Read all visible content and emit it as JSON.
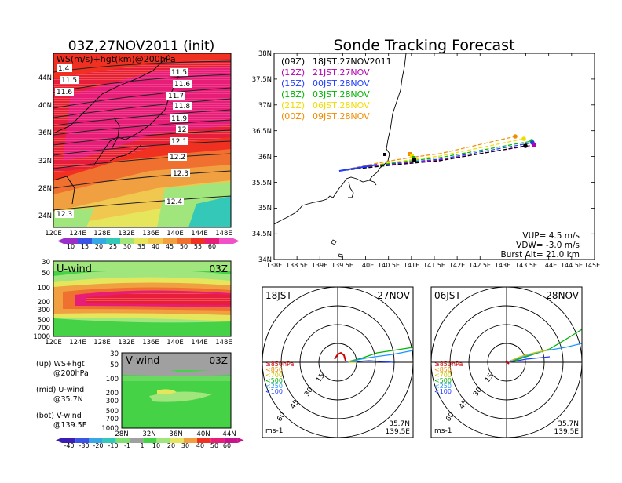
{
  "left_title": "03Z,27NOV2011 (init)",
  "right_title": "Sonde Tracking Forecast",
  "map": {
    "label": "WS(m/s)+hgt(km)@200hPa",
    "lat_labels": [
      "44N",
      "40N",
      "36N",
      "32N",
      "28N",
      "24N"
    ],
    "lon_labels": [
      "120E",
      "124E",
      "128E",
      "132E",
      "136E",
      "140E",
      "144E",
      "148E"
    ],
    "height_labels": [
      "1.4",
      "11.5",
      "11.6",
      "11.5",
      "11.6",
      "11.7",
      "11.8",
      "11.9",
      "12",
      "12.1",
      "12.2",
      "12.3",
      "12.4",
      "12.3"
    ]
  },
  "ws_colorbar": {
    "labels": [
      "10",
      "15",
      "20",
      "25",
      "30",
      "35",
      "40",
      "45",
      "50",
      "55",
      "60"
    ],
    "colors": [
      "#9b30c8",
      "#3a55e6",
      "#37a8e6",
      "#34c8b8",
      "#a0e67c",
      "#e6e65c",
      "#f0c850",
      "#f0a040",
      "#f07030",
      "#f03020",
      "#e61e78",
      "#f050c8"
    ]
  },
  "uwind": {
    "label": "U-wind",
    "time": "03Z",
    "p_labels": [
      "30",
      "50",
      "100",
      "200",
      "300",
      "500",
      "700",
      "1000"
    ],
    "lon_labels": [
      "120E",
      "124E",
      "128E",
      "132E",
      "136E",
      "140E",
      "144E",
      "148E"
    ]
  },
  "vwind": {
    "label": "V-wind",
    "time": "03Z",
    "p_labels": [
      "30",
      "50",
      "100",
      "200",
      "300",
      "500",
      "700",
      "1000"
    ],
    "lat_labels": [
      "28N",
      "32N",
      "36N",
      "40N",
      "44N"
    ]
  },
  "legend_text": {
    "up1": "(up) WS+hgt",
    "up2": "@200hPa",
    "mid1": "(mid) U-wind",
    "mid2": "@35.7N",
    "bot1": "(bot) V-wind",
    "bot2": "@139.5E"
  },
  "wind_colorbar": {
    "labels": [
      "-40",
      "-30",
      "-20",
      "-10",
      "-1",
      "1",
      "10",
      "20",
      "30",
      "40",
      "50",
      "60"
    ],
    "colors": [
      "#3a1eb4",
      "#3a55e6",
      "#37a8e6",
      "#34c8b8",
      "#7fe070",
      "#a0a0a0",
      "#46d246",
      "#a0e67c",
      "#e6e65c",
      "#f0a040",
      "#f03020",
      "#e61e78",
      "#c8148c"
    ]
  },
  "track": {
    "lat_labels": [
      "38N",
      "37.5N",
      "37N",
      "36.5N",
      "36N",
      "35.5N",
      "35N",
      "34.5N",
      "34N"
    ],
    "lon_labels": [
      "138E",
      "138.5E",
      "139E",
      "139.5E",
      "140E",
      "140.5E",
      "141E",
      "141.5E",
      "142E",
      "142.5E",
      "143E",
      "143.5E",
      "144E",
      "144.5E",
      "145E"
    ],
    "series": [
      {
        "code": "(09Z)",
        "time": "18JST,27NOV2011",
        "color": "#000000"
      },
      {
        "code": "(12Z)",
        "time": "21JST,27NOV",
        "color": "#b400b4"
      },
      {
        "code": "(15Z)",
        "time": "00JST,28NOV",
        "color": "#1e3cff"
      },
      {
        "code": "(18Z)",
        "time": "03JST,28NOV",
        "color": "#00b400"
      },
      {
        "code": "(21Z)",
        "time": "06JST,28NOV",
        "color": "#f0dc00"
      },
      {
        "code": "(00Z)",
        "time": "09JST,28NOV",
        "color": "#f08c00"
      }
    ],
    "vup": "VUP=  4.5 m/s",
    "vdw": "VDW= -3.0 m/s",
    "burst": "Burst Alt= 21.0 km"
  },
  "hodo1": {
    "left": "18JST",
    "right": "27NOV",
    "levels": [
      "≥850hPa",
      "<850",
      "<700",
      "<500",
      "<250",
      "<100"
    ],
    "level_colors": [
      "#d20000",
      "#f08c00",
      "#c8c800",
      "#00b400",
      "#1e96ff",
      "#1e3cff"
    ],
    "rings": [
      "15",
      "30",
      "45",
      "60"
    ],
    "unit": "ms-1",
    "lat": "35.7N",
    "lon": "139.5E"
  },
  "hodo2": {
    "left": "06JST",
    "right": "28NOV",
    "levels": [
      "≥850hPa",
      "<850",
      "<700",
      "<500",
      "<250",
      "<100"
    ],
    "level_colors": [
      "#d20000",
      "#f08c00",
      "#c8c800",
      "#00b400",
      "#1e96ff",
      "#1e3cff"
    ],
    "rings": [
      "15",
      "30",
      "45",
      "60"
    ],
    "unit": "ms-1",
    "lat": "35.7N",
    "lon": "139.5E"
  }
}
